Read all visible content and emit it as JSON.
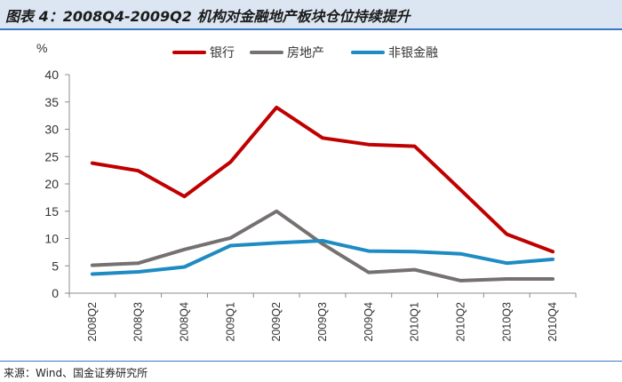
{
  "header": {
    "title": "图表 4：2008Q4-2009Q2 机构对金融地产板块仓位持续提升"
  },
  "footer": {
    "source": "来源：Wind、国金证券研究所"
  },
  "chart_data": {
    "type": "line",
    "title": "2008Q4-2009Q2 机构对金融地产板块仓位持续提升",
    "ylabel": "%",
    "xlabel": "",
    "ylim": [
      0,
      40
    ],
    "yticks": [
      0,
      5,
      10,
      15,
      20,
      25,
      30,
      35,
      40
    ],
    "grid": false,
    "legend_position": "top",
    "categories": [
      "2008Q2",
      "2008Q3",
      "2008Q4",
      "2009Q1",
      "2009Q2",
      "2009Q3",
      "2009Q4",
      "2010Q1",
      "2010Q2",
      "2010Q3",
      "2010Q4"
    ],
    "series": [
      {
        "name": "银行",
        "color": "#c00000",
        "values": [
          23.8,
          22.4,
          17.7,
          24.0,
          34.0,
          28.4,
          27.2,
          26.9,
          18.9,
          10.8,
          7.6
        ]
      },
      {
        "name": "房地产",
        "color": "#767171",
        "values": [
          5.1,
          5.5,
          8.0,
          10.1,
          15.0,
          9.0,
          3.8,
          4.3,
          2.3,
          2.6,
          2.6
        ]
      },
      {
        "name": "非银金融",
        "color": "#1e8bc3",
        "values": [
          3.5,
          3.9,
          4.8,
          8.7,
          9.2,
          9.6,
          7.7,
          7.6,
          7.2,
          5.5,
          6.2
        ]
      }
    ]
  }
}
